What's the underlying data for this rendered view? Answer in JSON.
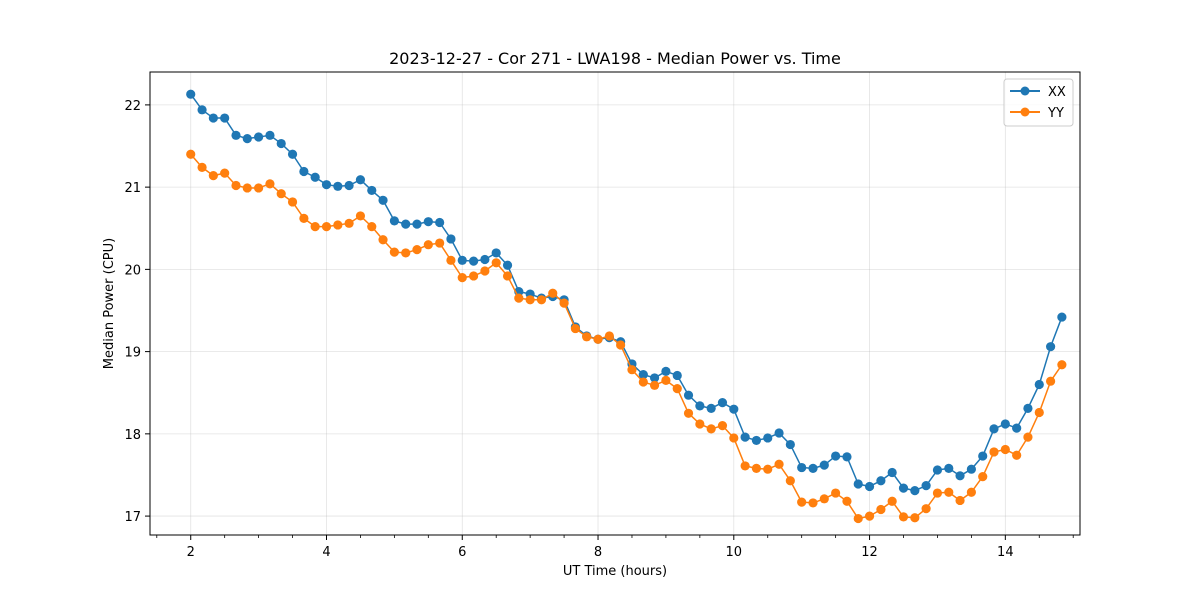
{
  "chart_data": {
    "type": "line",
    "title": "2023-12-27 - Cor 271 - LWA198 - Median Power vs. Time",
    "xlabel": "UT Time (hours)",
    "ylabel": "Median Power (CPU)",
    "xlim": [
      1.4,
      15.1
    ],
    "ylim": [
      16.77,
      22.4
    ],
    "xticks": [
      2,
      4,
      6,
      8,
      10,
      12,
      14
    ],
    "xtick_labels": [
      "2",
      "4",
      "6",
      "8",
      "10",
      "12",
      "14"
    ],
    "yticks": [
      17,
      18,
      19,
      20,
      21,
      22
    ],
    "ytick_labels": [
      "17",
      "18",
      "19",
      "20",
      "21",
      "22"
    ],
    "grid": true,
    "legend_position": "top-right",
    "x": [
      2.0,
      2.167,
      2.333,
      2.5,
      2.667,
      2.833,
      3.0,
      3.167,
      3.333,
      3.5,
      3.667,
      3.833,
      4.0,
      4.167,
      4.333,
      4.5,
      4.667,
      4.833,
      5.0,
      5.167,
      5.333,
      5.5,
      5.667,
      5.833,
      6.0,
      6.167,
      6.333,
      6.5,
      6.667,
      6.833,
      7.0,
      7.167,
      7.333,
      7.5,
      7.667,
      7.833,
      8.0,
      8.167,
      8.333,
      8.5,
      8.667,
      8.833,
      9.0,
      9.167,
      9.333,
      9.5,
      9.667,
      9.833,
      10.0,
      10.167,
      10.333,
      10.5,
      10.667,
      10.833,
      11.0,
      11.167,
      11.333,
      11.5,
      11.667,
      11.833,
      12.0,
      12.167,
      12.333,
      12.5,
      12.667,
      12.833,
      13.0,
      13.167,
      13.333,
      13.5,
      13.667,
      13.833,
      14.0,
      14.167,
      14.333,
      14.5,
      14.667,
      14.833
    ],
    "series": [
      {
        "name": "XX",
        "color": "#1f77b4",
        "values": [
          22.13,
          21.94,
          21.84,
          21.84,
          21.63,
          21.59,
          21.61,
          21.63,
          21.53,
          21.4,
          21.19,
          21.12,
          21.03,
          21.01,
          21.02,
          21.09,
          20.96,
          20.84,
          20.59,
          20.55,
          20.55,
          20.58,
          20.57,
          20.37,
          20.11,
          20.1,
          20.12,
          20.2,
          20.05,
          19.73,
          19.7,
          19.65,
          19.67,
          19.63,
          19.3,
          19.19,
          19.15,
          19.17,
          19.12,
          18.85,
          18.72,
          18.68,
          18.76,
          18.71,
          18.47,
          18.34,
          18.31,
          18.38,
          18.3,
          17.96,
          17.92,
          17.95,
          18.01,
          17.87,
          17.59,
          17.58,
          17.62,
          17.73,
          17.72,
          17.39,
          17.36,
          17.43,
          17.53,
          17.34,
          17.31,
          17.37,
          17.56,
          17.58,
          17.49,
          17.57,
          17.73,
          18.06,
          18.12,
          18.07,
          18.31,
          18.6,
          19.06,
          19.42
        ]
      },
      {
        "name": "YY",
        "color": "#ff7f0e",
        "values": [
          21.4,
          21.24,
          21.14,
          21.17,
          21.02,
          20.99,
          20.99,
          21.04,
          20.92,
          20.82,
          20.62,
          20.52,
          20.52,
          20.54,
          20.56,
          20.65,
          20.52,
          20.36,
          20.21,
          20.2,
          20.24,
          20.3,
          20.32,
          20.11,
          19.9,
          19.92,
          19.98,
          20.08,
          19.92,
          19.65,
          19.63,
          19.63,
          19.71,
          19.59,
          19.28,
          19.18,
          19.15,
          19.19,
          19.08,
          18.78,
          18.63,
          18.59,
          18.65,
          18.55,
          18.25,
          18.12,
          18.06,
          18.1,
          17.95,
          17.61,
          17.58,
          17.57,
          17.63,
          17.43,
          17.17,
          17.16,
          17.21,
          17.28,
          17.18,
          16.97,
          17.0,
          17.08,
          17.18,
          16.99,
          16.98,
          17.09,
          17.28,
          17.29,
          17.19,
          17.29,
          17.48,
          17.78,
          17.81,
          17.74,
          17.96,
          18.26,
          18.64,
          18.84
        ]
      }
    ]
  }
}
